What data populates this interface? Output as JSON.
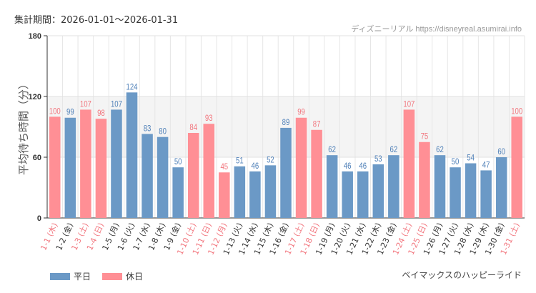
{
  "header": {
    "period_label": "集計期間：2026-01-01〜2026-01-31",
    "credit": "ディズニーリアル https://disneyreal.asumirai.info"
  },
  "footer": {
    "attraction": "ベイマックスのハッピーライド"
  },
  "colors": {
    "weekday": "#6b99c6",
    "holiday": "#ff8f95",
    "weekday_text": "#4f80b8",
    "holiday_text": "#f2767e",
    "band": "#f4f4f4"
  },
  "chart_data": {
    "type": "bar",
    "ylabel": "平均待ち時間（分）",
    "ylim": [
      0,
      180
    ],
    "yticks": [
      0,
      60,
      120,
      180
    ],
    "shaded_band": [
      60,
      120
    ],
    "grid": true,
    "legend_placement": "bottom-left",
    "legend": [
      {
        "name": "平日",
        "key": "weekday"
      },
      {
        "name": "休日",
        "key": "holiday"
      }
    ],
    "categories": [
      "1-1 (木)",
      "1-2 (金)",
      "1-3 (土)",
      "1-4 (日)",
      "1-5 (月)",
      "1-6 (火)",
      "1-7 (水)",
      "1-8 (木)",
      "1-9 (金)",
      "1-10 (土)",
      "1-11 (日)",
      "1-12 (月)",
      "1-13 (火)",
      "1-14 (水)",
      "1-15 (木)",
      "1-16 (金)",
      "1-17 (土)",
      "1-18 (日)",
      "1-19 (月)",
      "1-20 (火)",
      "1-21 (水)",
      "1-22 (木)",
      "1-23 (金)",
      "1-24 (土)",
      "1-25 (日)",
      "1-26 (月)",
      "1-27 (火)",
      "1-28 (水)",
      "1-29 (木)",
      "1-30 (金)",
      "1-31 (土)"
    ],
    "values": [
      100,
      99,
      107,
      98,
      107,
      124,
      83,
      80,
      50,
      84,
      93,
      45,
      51,
      46,
      52,
      89,
      99,
      87,
      62,
      46,
      46,
      53,
      62,
      107,
      75,
      62,
      50,
      54,
      47,
      60,
      100
    ],
    "holiday": [
      true,
      false,
      true,
      true,
      false,
      false,
      false,
      false,
      false,
      true,
      true,
      true,
      false,
      false,
      false,
      false,
      true,
      true,
      false,
      false,
      false,
      false,
      false,
      true,
      true,
      false,
      false,
      false,
      false,
      false,
      true
    ]
  }
}
